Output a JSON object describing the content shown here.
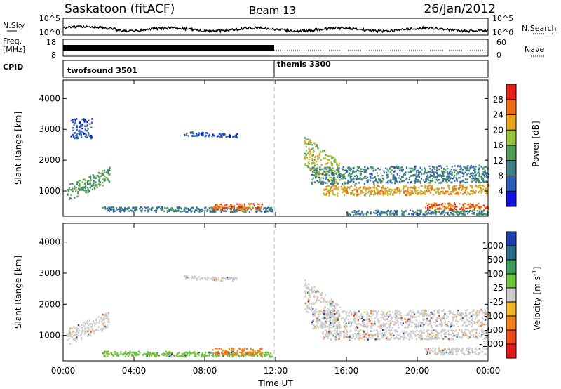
{
  "header": {
    "station": "Saskatoon (fitACF)",
    "beam": "Beam 13",
    "date": "26/Jan/2012"
  },
  "summary_panels": {
    "nsky": {
      "label": "N.Sky",
      "ticks": [
        "10^5",
        "10^0"
      ],
      "right_label": "N.Search",
      "right_ticks": [
        "10^5",
        "10^0"
      ]
    },
    "freq": {
      "label_lines": [
        "Freq.",
        "[MHz]"
      ],
      "ticks": [
        "18",
        "8"
      ],
      "right_label": "Nave",
      "right_ticks": [
        "60",
        "0"
      ]
    },
    "cpid": {
      "label": "CPID",
      "modes": [
        {
          "name": "twofsound 3501",
          "start_hour": 0,
          "end_hour": 12
        },
        {
          "name": "themis 3300",
          "start_hour": 12,
          "end_hour": 24
        }
      ]
    }
  },
  "chart_data": [
    {
      "type": "heatmap",
      "title": "",
      "ylabel": "Slant Range [km]",
      "xlabel": "Time UT",
      "xlim": [
        0,
        24
      ],
      "ylim": [
        180,
        4600
      ],
      "x_ticks": [
        "00:00",
        "04:00",
        "08:00",
        "12:00",
        "16:00",
        "20:00",
        "00:00"
      ],
      "y_ticks": [
        1000,
        2000,
        3000,
        4000
      ],
      "colorbar": {
        "label": "Power [dB]",
        "ticks": [
          "4",
          "8",
          "12",
          "16",
          "20",
          "24",
          "28"
        ],
        "colors": [
          "#1010e0",
          "#2c5cb8",
          "#3e7f88",
          "#4f9c58",
          "#99c23c",
          "#e8a31e",
          "#f06a12",
          "#e6221a"
        ]
      },
      "scatter_regions": [
        {
          "t0": 0.2,
          "t1": 2.6,
          "r_center": 1250,
          "r_spread": 260,
          "slope": 280,
          "level": 3
        },
        {
          "t0": 0.4,
          "t1": 1.6,
          "r_center": 3050,
          "r_spread": 320,
          "slope": 0,
          "level": 1
        },
        {
          "t0": 2.2,
          "t1": 11.8,
          "r_center": 420,
          "r_spread": 80,
          "slope": -10,
          "level": 2
        },
        {
          "t0": 8.4,
          "t1": 11.2,
          "r_center": 500,
          "r_spread": 110,
          "slope": 0,
          "level": 6
        },
        {
          "t0": 6.8,
          "t1": 9.8,
          "r_center": 2850,
          "r_spread": 60,
          "slope": -30,
          "level": 1
        },
        {
          "t0": 13.6,
          "t1": 15.6,
          "r_center": 1900,
          "r_spread": 500,
          "slope": -420,
          "level": 4
        },
        {
          "t0": 14.6,
          "t1": 24.0,
          "r_center": 1050,
          "r_spread": 160,
          "slope": 20,
          "level": 5
        },
        {
          "t0": 14.0,
          "t1": 24.0,
          "r_center": 1550,
          "r_spread": 280,
          "slope": 35,
          "level": 2
        },
        {
          "t0": 20.4,
          "t1": 24.0,
          "r_center": 520,
          "r_spread": 110,
          "slope": 0,
          "level": 6
        },
        {
          "t0": 16.0,
          "t1": 24.0,
          "r_center": 320,
          "r_spread": 80,
          "slope": 0,
          "level": 2
        }
      ]
    },
    {
      "type": "heatmap",
      "title": "",
      "ylabel": "Slant Range [km]",
      "xlabel": "Time UT",
      "xlim": [
        0,
        24
      ],
      "ylim": [
        180,
        4600
      ],
      "x_ticks": [
        "00:00",
        "04:00",
        "08:00",
        "12:00",
        "16:00",
        "20:00",
        "00:00"
      ],
      "y_ticks": [
        1000,
        2000,
        3000,
        4000
      ],
      "colorbar": {
        "label": "Velocity [m s^-1]",
        "ticks": [
          "1000",
          "500",
          "100",
          "25",
          "-25",
          "-100",
          "-500",
          "-1000"
        ],
        "colors": [
          "#1a3fb0",
          "#2d6b8a",
          "#3f9c5e",
          "#6bc23c",
          "#cccccc",
          "#f2b82a",
          "#f0821c",
          "#e94a18",
          "#e21a1a"
        ]
      },
      "scatter_regions": [
        {
          "t0": 0.2,
          "t1": 2.6,
          "r_center": 1250,
          "r_spread": 260,
          "slope": 280,
          "color": 4
        },
        {
          "t0": 2.2,
          "t1": 11.8,
          "r_center": 420,
          "r_spread": 80,
          "slope": -10,
          "color": 3
        },
        {
          "t0": 8.4,
          "t1": 11.2,
          "r_center": 500,
          "r_spread": 110,
          "slope": 0,
          "color": 6
        },
        {
          "t0": 6.8,
          "t1": 9.8,
          "r_center": 2850,
          "r_spread": 60,
          "slope": -30,
          "color": 4
        },
        {
          "t0": 13.6,
          "t1": 15.6,
          "r_center": 1900,
          "r_spread": 500,
          "slope": -420,
          "color": 4
        },
        {
          "t0": 14.6,
          "t1": 24.0,
          "r_center": 1050,
          "r_spread": 160,
          "slope": 20,
          "color": 4
        },
        {
          "t0": 14.0,
          "t1": 24.0,
          "r_center": 1550,
          "r_spread": 280,
          "slope": 35,
          "color": 4
        },
        {
          "t0": 20.4,
          "t1": 24.0,
          "r_center": 520,
          "r_spread": 110,
          "slope": 0,
          "color": 4
        }
      ]
    }
  ]
}
